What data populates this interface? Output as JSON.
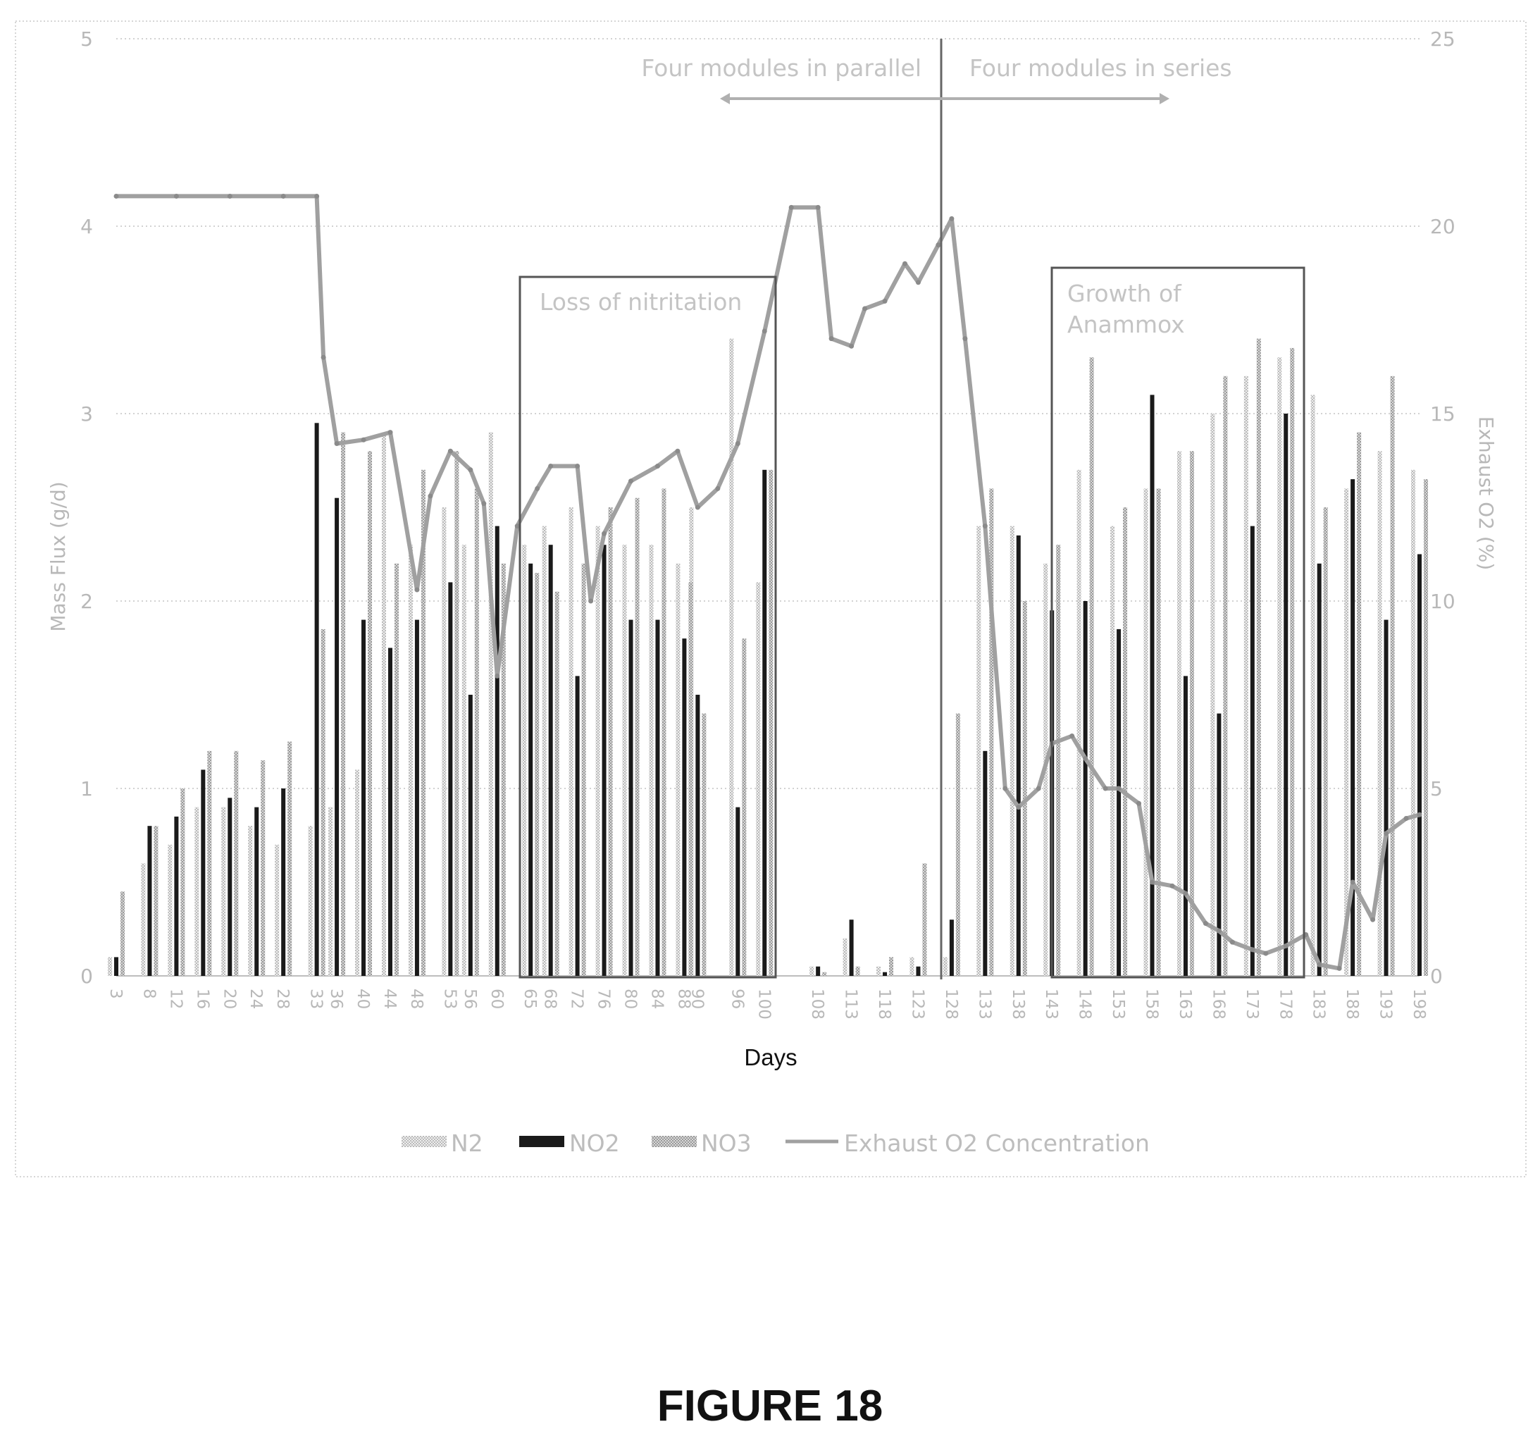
{
  "figure_caption": "FIGURE 18",
  "chart_data": {
    "type": "bar",
    "title": "",
    "xlabel": "Days",
    "ylabel": "Mass Flux (g/d)",
    "y2label": "Exhaust O2 (%)",
    "ylim": [
      0,
      5
    ],
    "y2lim": [
      0,
      25
    ],
    "yticks": [
      "0",
      "1",
      "2",
      "3",
      "4",
      "5"
    ],
    "y2ticks": [
      "0",
      "5",
      "10",
      "15",
      "20",
      "25"
    ],
    "grid": "horizontal dotted",
    "legend_position": "bottom",
    "colors": {
      "N2": "#c8c8c8",
      "NO2": "#1a1a1a",
      "NO3": "#a8a8a8",
      "O2": "#a0a0a0",
      "box": "#555555",
      "divider": "#666666"
    },
    "x_tick_labels": [
      "3",
      "8",
      "12",
      "16",
      "20",
      "24",
      "28",
      "33",
      "36",
      "40",
      "44",
      "48",
      "53",
      "56",
      "60",
      "65",
      "68",
      "72",
      "76",
      "80",
      "84",
      "88",
      "90",
      "96",
      "100",
      "108",
      "113",
      "118",
      "123",
      "128",
      "133",
      "138",
      "143",
      "148",
      "153",
      "158",
      "163",
      "168",
      "173",
      "178",
      "183",
      "188",
      "193",
      "198"
    ],
    "x_range": [
      3,
      198
    ],
    "series": [
      {
        "name": "N2",
        "type": "bar",
        "axis": "left",
        "x": [
          3,
          8,
          12,
          16,
          20,
          24,
          28,
          33,
          36,
          40,
          44,
          48,
          53,
          56,
          60,
          65,
          68,
          72,
          76,
          80,
          84,
          88,
          90,
          96,
          100,
          108,
          113,
          118,
          123,
          128,
          133,
          138,
          143,
          148,
          153,
          158,
          163,
          168,
          173,
          178,
          183,
          188,
          193,
          198
        ],
        "values": [
          0.1,
          0.6,
          0.7,
          0.9,
          0.9,
          0.8,
          0.7,
          0.8,
          0.9,
          1.1,
          2.9,
          2.3,
          2.5,
          2.3,
          2.9,
          2.3,
          2.4,
          2.5,
          2.4,
          2.3,
          2.3,
          2.2,
          2.5,
          3.4,
          2.1,
          0.05,
          0.2,
          0.05,
          0.1,
          0.1,
          2.4,
          2.4,
          2.2,
          2.7,
          2.4,
          2.6,
          2.8,
          3.0,
          3.2,
          3.3,
          3.1,
          2.6,
          2.8,
          2.7
        ]
      },
      {
        "name": "NO2",
        "type": "bar",
        "axis": "left",
        "x": [
          3,
          8,
          12,
          16,
          20,
          24,
          28,
          33,
          36,
          40,
          44,
          48,
          53,
          56,
          60,
          65,
          68,
          72,
          76,
          80,
          84,
          88,
          90,
          96,
          100,
          108,
          113,
          118,
          123,
          128,
          133,
          138,
          143,
          148,
          153,
          158,
          163,
          168,
          173,
          178,
          183,
          188,
          193,
          198
        ],
        "values": [
          0.1,
          0.8,
          0.85,
          1.1,
          0.95,
          0.9,
          1.0,
          2.95,
          2.55,
          1.9,
          1.75,
          1.9,
          2.1,
          1.5,
          2.4,
          2.2,
          2.3,
          1.6,
          2.3,
          1.9,
          1.9,
          1.8,
          1.5,
          0.9,
          2.7,
          0.05,
          0.3,
          0.02,
          0.05,
          0.3,
          1.2,
          2.35,
          1.95,
          2.0,
          1.85,
          3.1,
          1.6,
          1.4,
          2.4,
          3.0,
          2.2,
          2.65,
          1.9,
          2.25
        ]
      },
      {
        "name": "NO3",
        "type": "bar",
        "axis": "left",
        "x": [
          3,
          8,
          12,
          16,
          20,
          24,
          28,
          33,
          36,
          40,
          44,
          48,
          53,
          56,
          60,
          65,
          68,
          72,
          76,
          80,
          84,
          88,
          90,
          96,
          100,
          108,
          113,
          118,
          123,
          128,
          133,
          138,
          143,
          148,
          153,
          158,
          163,
          168,
          173,
          178,
          183,
          188,
          193,
          198
        ],
        "values": [
          0.45,
          0.8,
          1.0,
          1.2,
          1.2,
          1.15,
          1.25,
          1.85,
          2.9,
          2.8,
          2.2,
          2.7,
          2.8,
          2.6,
          2.2,
          2.15,
          2.05,
          2.2,
          2.5,
          2.55,
          2.6,
          2.1,
          1.4,
          1.8,
          2.7,
          0.02,
          0.05,
          0.1,
          0.6,
          1.4,
          2.6,
          2.0,
          2.3,
          3.3,
          2.5,
          2.6,
          2.8,
          3.2,
          3.4,
          3.35,
          2.5,
          2.9,
          3.2,
          2.65
        ]
      },
      {
        "name": "Exhaust O2 Concentration",
        "type": "line",
        "axis": "right",
        "x": [
          3,
          12,
          20,
          28,
          33,
          34,
          36,
          40,
          44,
          48,
          50,
          53,
          56,
          58,
          60,
          63,
          66,
          68,
          72,
          74,
          76,
          80,
          84,
          87,
          90,
          93,
          96,
          100,
          104,
          108,
          110,
          113,
          115,
          118,
          121,
          123,
          126,
          128,
          130,
          133,
          136,
          138,
          141,
          143,
          146,
          148,
          151,
          153,
          156,
          158,
          161,
          163,
          166,
          168,
          170,
          173,
          175,
          178,
          181,
          183,
          186,
          188,
          191,
          193,
          196,
          198
        ],
        "values": [
          20.8,
          20.8,
          20.8,
          20.8,
          20.8,
          16.5,
          14.2,
          14.3,
          14.5,
          10.3,
          12.8,
          14.0,
          13.5,
          12.6,
          8.0,
          12.0,
          13.0,
          13.6,
          13.6,
          10.0,
          11.8,
          13.2,
          13.6,
          14.0,
          12.5,
          13.0,
          14.2,
          17.2,
          20.5,
          20.5,
          17.0,
          16.8,
          17.8,
          18.0,
          19.0,
          18.5,
          19.5,
          20.2,
          17.0,
          12.0,
          5.0,
          4.5,
          5.0,
          6.2,
          6.4,
          5.8,
          5.0,
          5.0,
          4.6,
          2.5,
          2.4,
          2.2,
          1.4,
          1.2,
          0.9,
          0.7,
          0.6,
          0.8,
          1.1,
          0.3,
          0.2,
          2.5,
          1.5,
          3.8,
          4.2,
          4.3
        ]
      }
    ],
    "annotations": {
      "parallel_label": "Four modules in parallel",
      "series_label": "Four modules in series",
      "box1_label": "Loss of nitritation",
      "box2_label_line1": "Growth of",
      "box2_label_line2": "Anammox"
    },
    "legend": [
      {
        "name": "N2",
        "label": "N2"
      },
      {
        "name": "NO2",
        "label": "NO2"
      },
      {
        "name": "NO3",
        "label": "NO3"
      },
      {
        "name": "O2",
        "label": "Exhaust O2 Concentration"
      }
    ]
  }
}
